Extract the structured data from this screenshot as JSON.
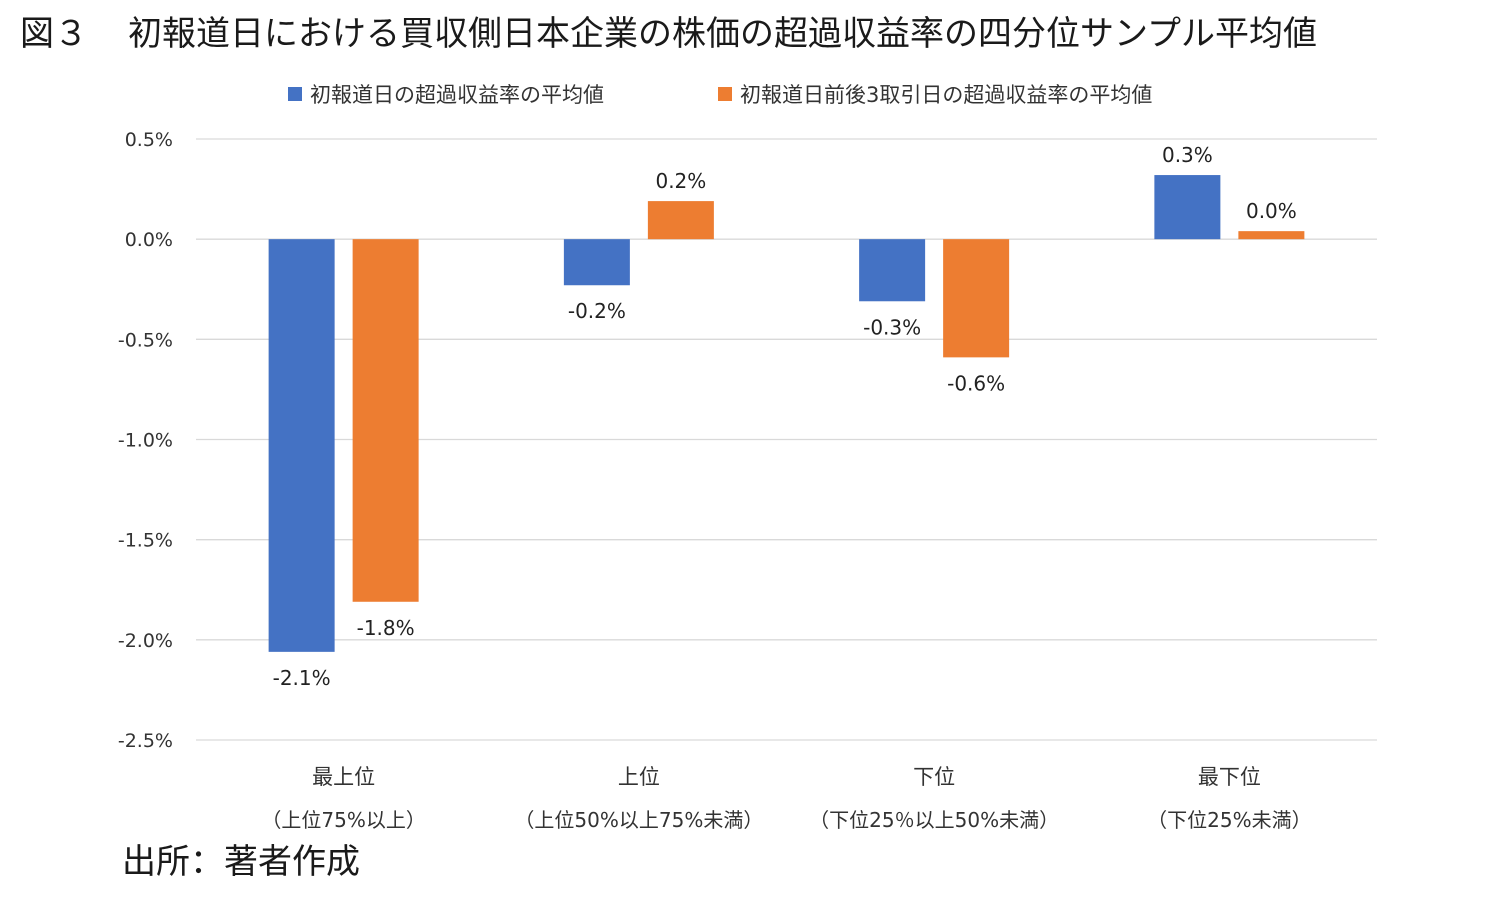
{
  "figure": {
    "number": "図３",
    "title": "初報道日における買収側日本企業の株価の超過収益率の四分位サンプル平均値",
    "source": "出所：著者作成"
  },
  "chart_data": {
    "type": "bar",
    "categories": [
      "最上位",
      "上位",
      "下位",
      "最下位"
    ],
    "category_sublabels": [
      "（上位75%以上）",
      "（上位50%以上75%未満）",
      "（下位25％以上50%未満）",
      "（下位25%未満）"
    ],
    "series": [
      {
        "name": "初報道日の超過収益率の平均値",
        "color": "#4472c4",
        "values": [
          -2.06,
          -0.23,
          -0.31,
          0.32
        ],
        "labels": [
          "-2.1%",
          "-0.2%",
          "-0.3%",
          "0.3%"
        ]
      },
      {
        "name": "初報道日前後3取引日の超過収益率の平均値",
        "color": "#ed7d31",
        "values": [
          -1.81,
          0.19,
          -0.59,
          0.04
        ],
        "labels": [
          "-1.8%",
          "0.2%",
          "-0.6%",
          "0.0%"
        ]
      }
    ],
    "ylim": [
      -2.5,
      0.5
    ],
    "yticks": [
      0.5,
      0.0,
      -0.5,
      -1.0,
      -1.5,
      -2.0,
      -2.5
    ],
    "ytick_labels": [
      "0.5%",
      "0.0%",
      "-0.5%",
      "-1.0%",
      "-1.5%",
      "-2.0%",
      "-2.5%"
    ],
    "grid": true,
    "legend_position": "top"
  }
}
